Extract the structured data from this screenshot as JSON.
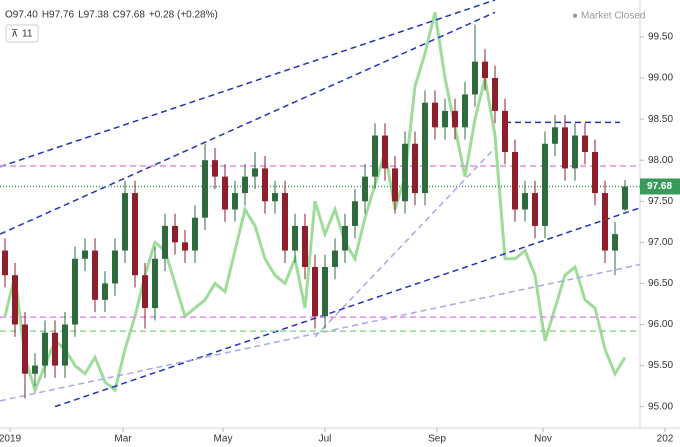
{
  "chart_data": {
    "type": "candlestick",
    "header": [
      "O97.40",
      "H97.76",
      "L97.38",
      "C97.68",
      "+0.28 (+0.28%)"
    ],
    "status": "Market Closed",
    "interval": "11",
    "last_price": {
      "value": 97.68,
      "label": "97.68"
    },
    "up_color": "#2f6b3f",
    "down_color": "#8e1f2c",
    "open": [
      96.9,
      96.6,
      96.0,
      95.4,
      95.5,
      95.9,
      95.5,
      96.0,
      96.8,
      96.9,
      96.3,
      96.5,
      96.9,
      97.6,
      96.6,
      96.2,
      96.8,
      97.2,
      97.0,
      96.9,
      97.3,
      98.0,
      97.8,
      97.4,
      97.6,
      97.8,
      97.9,
      97.5,
      97.6,
      96.9,
      97.2,
      96.7,
      96.1,
      96.7,
      96.9,
      97.2,
      97.5,
      97.8,
      98.3,
      97.9,
      97.5,
      98.2,
      97.6,
      98.7,
      98.4,
      98.6,
      98.4,
      98.8,
      99.2,
      99.0,
      98.6,
      98.1,
      97.4,
      97.6,
      97.2,
      98.2,
      98.4,
      97.9,
      98.3,
      98.1,
      97.6,
      96.9,
      97.4
    ],
    "high": [
      97.05,
      96.75,
      96.15,
      95.65,
      96.05,
      96.05,
      96.15,
      96.95,
      97.05,
      97.05,
      96.65,
      97.05,
      97.75,
      97.75,
      96.75,
      96.95,
      97.35,
      97.35,
      97.15,
      97.45,
      98.2,
      98.15,
      97.95,
      97.75,
      97.95,
      98.1,
      98.05,
      97.75,
      97.75,
      97.35,
      97.35,
      96.85,
      96.85,
      97.05,
      97.35,
      97.65,
      97.95,
      98.45,
      98.45,
      98.05,
      98.35,
      98.35,
      98.85,
      98.85,
      98.75,
      98.75,
      98.95,
      99.65,
      99.35,
      99.15,
      98.75,
      98.25,
      97.75,
      97.75,
      98.35,
      98.55,
      98.55,
      98.45,
      98.45,
      98.25,
      97.75,
      97.25,
      97.76
    ],
    "low": [
      96.45,
      95.85,
      95.1,
      95.25,
      95.35,
      95.35,
      95.35,
      95.85,
      96.65,
      96.15,
      96.15,
      96.35,
      96.75,
      96.45,
      95.95,
      96.05,
      96.65,
      96.85,
      96.75,
      96.75,
      97.15,
      97.65,
      97.25,
      97.25,
      97.45,
      97.65,
      97.35,
      97.35,
      96.75,
      96.75,
      96.55,
      95.95,
      95.95,
      96.55,
      96.75,
      97.05,
      97.35,
      97.65,
      97.75,
      97.35,
      97.35,
      97.45,
      97.45,
      98.25,
      98.25,
      98.25,
      98.25,
      98.65,
      98.85,
      98.45,
      97.95,
      97.25,
      97.25,
      97.05,
      97.05,
      98.05,
      97.75,
      97.75,
      97.95,
      97.45,
      96.75,
      96.6,
      97.38
    ],
    "close": [
      96.6,
      96.0,
      95.4,
      95.5,
      95.9,
      95.5,
      96.0,
      96.8,
      96.9,
      96.3,
      96.5,
      96.9,
      97.6,
      96.6,
      96.2,
      96.8,
      97.2,
      97.0,
      96.9,
      97.3,
      98.0,
      97.8,
      97.4,
      97.6,
      97.8,
      97.9,
      97.5,
      97.6,
      96.9,
      97.2,
      96.7,
      96.1,
      96.7,
      96.9,
      97.2,
      97.5,
      97.8,
      98.3,
      97.9,
      97.5,
      98.2,
      97.6,
      98.7,
      98.4,
      98.6,
      98.4,
      98.8,
      99.2,
      99.0,
      98.6,
      98.1,
      97.4,
      97.6,
      97.2,
      98.2,
      98.4,
      97.9,
      98.3,
      98.1,
      97.6,
      96.9,
      97.1,
      97.68
    ],
    "overlay": {
      "color": "#9fdc9a",
      "values": [
        96.1,
        96.6,
        95.6,
        95.2,
        95.5,
        95.8,
        95.7,
        95.5,
        95.4,
        95.6,
        95.3,
        95.2,
        95.7,
        96.1,
        96.6,
        97.0,
        96.9,
        96.5,
        96.1,
        96.2,
        96.3,
        96.5,
        96.4,
        96.9,
        97.4,
        97.2,
        96.8,
        96.6,
        96.5,
        96.8,
        96.2,
        97.5,
        97.1,
        97.4,
        97.0,
        96.8,
        97.3,
        97.7,
        98.1,
        97.4,
        97.8,
        98.9,
        99.3,
        99.8,
        99.0,
        98.4,
        97.8,
        98.5,
        99.0,
        98.3,
        96.8,
        96.8,
        96.9,
        96.6,
        95.8,
        96.2,
        96.6,
        96.7,
        96.3,
        96.2,
        95.7,
        95.4,
        95.6
      ]
    },
    "lines": [
      {
        "x": [
          -0.5,
          49
        ],
        "y": [
          97.92,
          99.95
        ],
        "color": "#2233bb",
        "dash": "6 4"
      },
      {
        "x": [
          -0.5,
          49
        ],
        "y": [
          97.1,
          99.8
        ],
        "color": "#2233bb",
        "dash": "6 4"
      },
      {
        "x": [
          5,
          63.5
        ],
        "y": [
          95.0,
          97.42
        ],
        "color": "#2233bb",
        "dash": "6 4"
      },
      {
        "x": [
          -0.5,
          63.5
        ],
        "y": [
          95.07,
          96.73
        ],
        "color": "#a8a8e8",
        "dash": "6 4"
      },
      {
        "x": [
          31,
          49
        ],
        "y": [
          95.85,
          98.15
        ],
        "color": "#a8a8e8",
        "dash": "6 4"
      },
      {
        "x": [
          50,
          61.5
        ],
        "y": [
          98.46,
          98.46
        ],
        "color": "#2233bb",
        "dash": "6 4"
      },
      {
        "x": [
          -0.5,
          63.5
        ],
        "y": [
          97.93,
          97.93
        ],
        "color": "#e08ee8",
        "dash": "6 4"
      },
      {
        "x": [
          -0.5,
          63.5
        ],
        "y": [
          96.09,
          96.09
        ],
        "color": "#e08ee8",
        "dash": "6 4"
      },
      {
        "x": [
          -0.5,
          63.5
        ],
        "y": [
          95.92,
          95.92
        ],
        "color": "#8ed88e",
        "dash": "6 4"
      },
      {
        "x": [
          -0.5,
          63.5
        ],
        "y": [
          97.68,
          97.68
        ],
        "color": "#3a9a5a",
        "dash": "1 2"
      }
    ],
    "xlim": [
      -0.5,
      63.5
    ],
    "ylim": [
      94.74,
      99.95
    ],
    "xticks": [
      {
        "value": 0.5,
        "label": "2019"
      },
      {
        "value": 11.8,
        "label": "Mar"
      },
      {
        "value": 21.8,
        "label": "May"
      },
      {
        "value": 32,
        "label": "Jul"
      },
      {
        "value": 43.2,
        "label": "Sep"
      },
      {
        "value": 53.8,
        "label": "Nov"
      },
      {
        "value": 66,
        "label": "202"
      }
    ],
    "yticks": [
      {
        "value": 95,
        "label": "95.00"
      },
      {
        "value": 95.5,
        "label": "95.50"
      },
      {
        "value": 96,
        "label": "96.00"
      },
      {
        "value": 96.5,
        "label": "96.50"
      },
      {
        "value": 97,
        "label": "97.00"
      },
      {
        "value": 97.5,
        "label": "97.50"
      },
      {
        "value": 98,
        "label": "98.00"
      },
      {
        "value": 98.5,
        "label": "98.50"
      },
      {
        "value": 99,
        "label": "99.00"
      },
      {
        "value": 99.5,
        "label": "99.50"
      }
    ]
  }
}
